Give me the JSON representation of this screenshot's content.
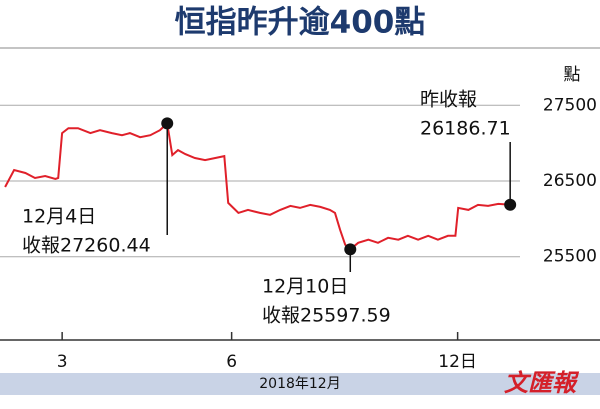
{
  "chart_data": {
    "type": "line",
    "title": "恒指昨升逾400點",
    "y_unit": "點",
    "xlabel": "2018年12月",
    "logo": "文匯報",
    "x": [
      -1.01,
      -0.85,
      -0.65,
      -0.48,
      -0.3,
      -0.12,
      -0.07,
      0,
      0.11,
      0.28,
      0.5,
      0.67,
      0.88,
      1.06,
      1.2,
      1.38,
      1.56,
      1.73,
      1.86,
      1.95,
      2.05,
      2.18,
      2.35,
      2.53,
      2.71,
      2.87,
      2.94,
      3.12,
      3.29,
      3.5,
      3.68,
      3.86,
      4.04,
      4.21,
      4.39,
      4.57,
      4.74,
      4.83,
      4.92,
      5.01,
      5.1,
      5.24,
      5.42,
      5.59,
      5.77,
      5.95,
      6.12,
      6.3,
      6.48,
      6.65,
      6.83,
      6.96,
      7.01,
      7.19,
      7.36,
      7.54,
      7.72,
      7.93
    ],
    "series": [
      {
        "color": "#e0202a",
        "values": [
          26421,
          26645,
          26605,
          26539,
          26566,
          26526,
          26539,
          27132,
          27197,
          27197,
          27132,
          27171,
          27132,
          27105,
          27132,
          27079,
          27105,
          27171,
          27260.44,
          26842,
          26908,
          26855,
          26803,
          26776,
          26803,
          26829,
          26211,
          26079,
          26118,
          26079,
          26053,
          26118,
          26171,
          26145,
          26184,
          26158,
          26118,
          26079,
          25855,
          25658,
          25597.59,
          25684,
          25724,
          25684,
          25750,
          25724,
          25776,
          25724,
          25776,
          25724,
          25776,
          25776,
          26145,
          26118,
          26184,
          26171,
          26197,
          26186.71
        ]
      }
    ],
    "annotations": [
      {
        "lines": [
          "12月4日",
          "收報27260.44"
        ]
      },
      {
        "lines": [
          "12月10日",
          "收報25597.59"
        ]
      },
      {
        "lines": [
          "昨收報",
          "26186.71"
        ]
      }
    ],
    "xlim": [
      -1.1,
      9.52
    ],
    "xticks": [
      {
        "value": 0,
        "label": "3"
      },
      {
        "value": 3,
        "label": "6"
      },
      {
        "value": 7,
        "label": "12日"
      }
    ],
    "ylim": [
      24400,
      28230
    ],
    "yticks": [
      25500,
      26500,
      27500
    ],
    "grid": true
  }
}
